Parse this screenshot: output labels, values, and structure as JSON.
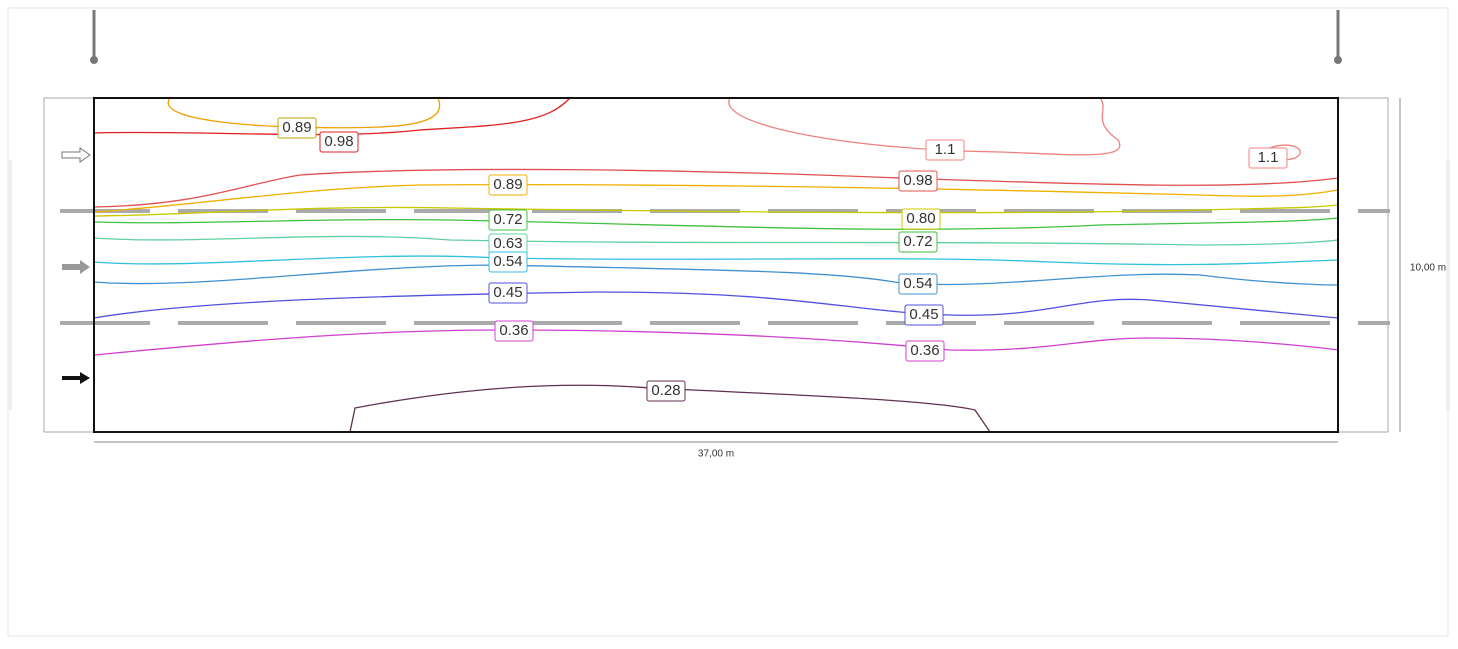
{
  "dimensions": {
    "length": "37,00 m",
    "width": "10,00 m"
  },
  "contour_labels": [
    "0.89",
    "0.98",
    "1.1",
    "1.1",
    "0.98",
    "0.89",
    "0.72",
    "0.80",
    "0.63",
    "0.72",
    "0.54",
    "0.54",
    "0.45",
    "0.45",
    "0.36",
    "0.36",
    "0.28"
  ]
}
